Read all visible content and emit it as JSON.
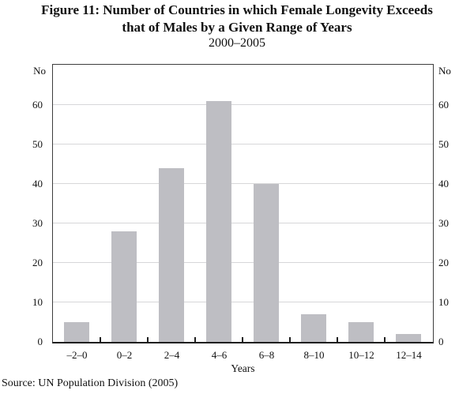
{
  "figure": {
    "title_line1": "Figure 11: Number of Countries in which Female Longevity Exceeds",
    "title_line2": "that of Males by a Given Range of Years",
    "subtitle": "2000–2005",
    "source": "Source: UN Population Division (2005)"
  },
  "chart_data": {
    "type": "bar",
    "title": "Figure 11: Number of Countries in which Female Longevity Exceeds that of Males by a Given Range of Years, 2000–2005",
    "categories": [
      "–2–0",
      "0–2",
      "2–4",
      "4–6",
      "6–8",
      "8–10",
      "10–12",
      "12–14"
    ],
    "values": [
      5,
      28,
      44,
      61,
      40,
      7,
      5,
      2
    ],
    "xlabel": "Years",
    "ylabel_left": "No",
    "ylabel_right": "No",
    "yticks": [
      0,
      10,
      20,
      30,
      40,
      50,
      60
    ],
    "ylim": [
      0,
      70
    ],
    "grid": true,
    "legend": false,
    "bar_color": "#bebec3",
    "gridline_color": "#d7d7d9",
    "frame_color": "#3d3d3d",
    "axis_color": "#1f1f1f",
    "text_color": "#111111"
  }
}
